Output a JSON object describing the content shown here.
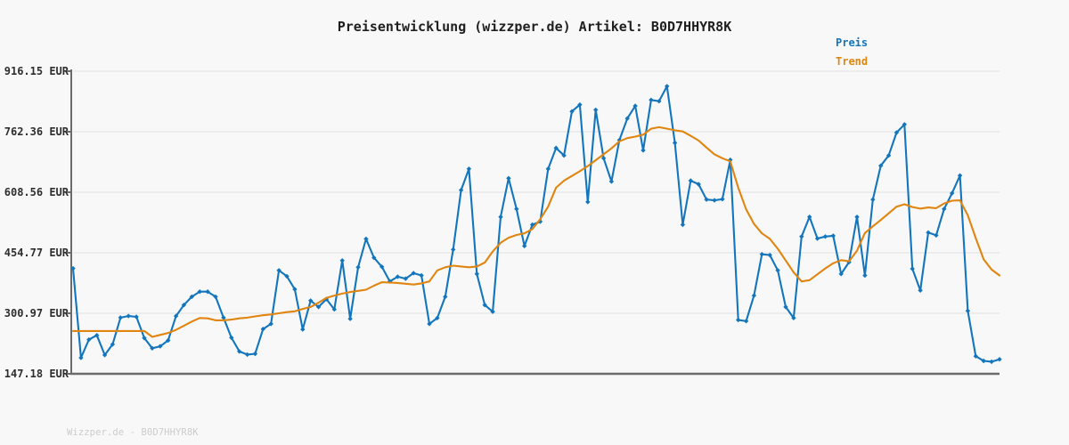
{
  "title": "Preisentwicklung (wizzper.de) Artikel: B0D7HHYR8K",
  "watermark": "Wizzper.de - B0D7HHYR8K",
  "legend": {
    "preis_label": "Preis",
    "trend_label": "Trend"
  },
  "colors": {
    "background": "#f8f8f8",
    "preis": "#1376bd",
    "trend": "#e0850f",
    "axis": "#6b6b6b",
    "grid": "#e8e8e8",
    "title_text": "#1f1f1f",
    "tick_text": "#2e2e2e",
    "watermark_text": "#cccccc"
  },
  "y_axis": {
    "tick_labels": [
      "916.15 EUR",
      "762.36 EUR",
      "608.56 EUR",
      "454.77 EUR",
      "300.97 EUR",
      "147.18 EUR"
    ],
    "tick_values": [
      916.15,
      762.36,
      608.56,
      454.77,
      300.97,
      147.18
    ]
  },
  "chart_data": {
    "type": "line",
    "title": "Preisentwicklung (wizzper.de) Artikel: B0D7HHYR8K",
    "xlabel": "",
    "ylabel": "EUR",
    "ylim": [
      147.18,
      916.15
    ],
    "grid": "horizontal",
    "legend_position": "top-right",
    "x_tick_labels": [],
    "series": [
      {
        "name": "Preis",
        "color": "#1376bd",
        "marker": "diamond",
        "values": [
          415,
          188,
          234,
          245,
          195,
          222,
          290,
          294,
          292,
          238,
          212,
          217,
          232,
          294,
          322,
          343,
          356,
          356,
          343,
          290,
          239,
          204,
          196,
          198,
          261,
          274,
          410,
          395,
          362,
          260,
          333,
          317,
          337,
          311,
          435,
          287,
          418,
          490,
          442,
          419,
          382,
          394,
          389,
          403,
          397,
          274,
          289,
          343,
          463,
          614,
          668,
          401,
          322,
          305,
          546,
          644,
          566,
          472,
          526,
          534,
          668,
          721,
          702,
          814,
          831,
          584,
          818,
          695,
          636,
          741,
          796,
          828,
          715,
          843,
          840,
          878,
          734,
          526,
          638,
          629,
          590,
          588,
          591,
          691,
          284,
          281,
          346,
          451,
          449,
          410,
          317,
          289,
          496,
          546,
          491,
          496,
          498,
          401,
          431,
          546,
          397,
          590,
          676,
          702,
          760,
          781,
          414,
          359,
          506,
          499,
          566,
          606,
          651,
          307,
          192,
          180,
          178,
          184
        ]
      },
      {
        "name": "Trend",
        "color": "#e0850f",
        "marker": "none",
        "values": [
          256,
          256,
          256,
          256,
          256,
          256,
          256,
          256,
          256,
          256,
          241,
          246,
          251,
          259,
          269,
          280,
          289,
          288,
          283,
          283,
          285,
          288,
          290,
          293,
          296,
          298,
          301,
          304,
          306,
          312,
          317,
          328,
          340,
          346,
          351,
          355,
          358,
          361,
          371,
          380,
          379,
          378,
          376,
          374,
          377,
          382,
          410,
          418,
          422,
          420,
          418,
          420,
          430,
          458,
          480,
          493,
          500,
          504,
          515,
          540,
          572,
          620,
          638,
          650,
          662,
          675,
          690,
          705,
          720,
          738,
          746,
          750,
          755,
          770,
          774,
          770,
          766,
          763,
          752,
          740,
          722,
          705,
          695,
          687,
          620,
          565,
          528,
          504,
          490,
          465,
          435,
          405,
          382,
          385,
          400,
          415,
          428,
          436,
          433,
          460,
          505,
          522,
          538,
          555,
          572,
          578,
          571,
          567,
          570,
          568,
          580,
          587,
          588,
          550,
          492,
          438,
          412,
          397
        ]
      }
    ]
  }
}
